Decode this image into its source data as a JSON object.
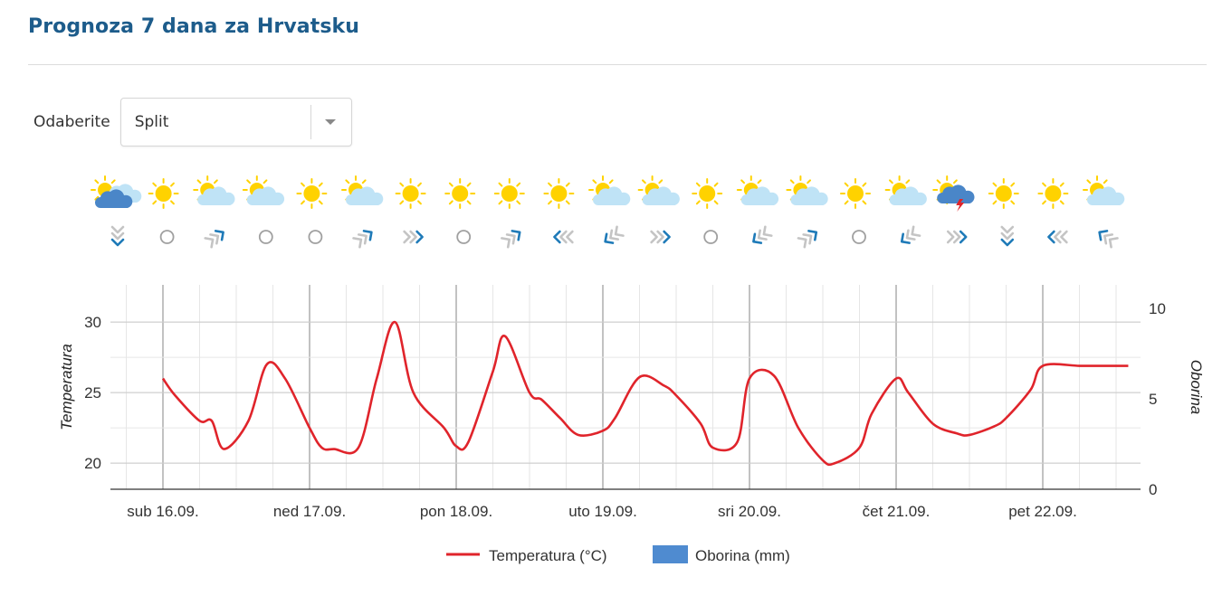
{
  "page": {
    "title": "Prognoza 7 dana za Hrvatsku"
  },
  "selector": {
    "label": "Odaberite",
    "value": "Split"
  },
  "colors": {
    "title": "#1d5c8b",
    "temperature_line": "#e0242b",
    "precipitation": "#4f8bd0",
    "sun": "#ffd200",
    "cloud": "#bfe3f6",
    "dark_cloud": "#4a86c8",
    "wind_blue": "#1e7ab8",
    "wind_gray": "#c4c4c4"
  },
  "weather_icons": [
    "sun-cloud-rain-icon",
    "sun-icon",
    "sun-cloud-icon",
    "sun-cloud-icon",
    "sun-icon",
    "sun-cloud-icon",
    "sun-icon",
    "sun-icon",
    "sun-icon",
    "sun-icon",
    "sun-cloud-icon",
    "sun-cloud-icon",
    "sun-icon",
    "sun-cloud-icon",
    "sun-cloud-icon",
    "sun-icon",
    "sun-cloud-icon",
    "sun-thunderstorm-icon",
    "sun-icon",
    "sun-icon",
    "sun-cloud-icon"
  ],
  "wind_icons": [
    "wind-down-icon",
    "calm-icon",
    "wind-up-right-icon",
    "calm-icon",
    "calm-icon",
    "wind-up-right-icon",
    "wind-right-icon",
    "calm-icon",
    "wind-up-right-icon",
    "wind-left-icon",
    "wind-down-left-icon",
    "wind-right-icon",
    "calm-icon",
    "wind-down-left-icon",
    "wind-up-right-icon",
    "calm-icon",
    "wind-down-left-icon",
    "wind-right-icon",
    "wind-down-icon",
    "wind-left-icon",
    "wind-up-left-icon"
  ],
  "chart_data": {
    "type": "line",
    "x_labels": [
      "sub 16.09.",
      "ned 17.09.",
      "pon 18.09.",
      "uto 19.09.",
      "sri 20.09.",
      "čet 21.09.",
      "pet 22.09."
    ],
    "y_left": {
      "label": "Temperatura",
      "ticks": [
        20,
        25,
        30
      ],
      "range": [
        18.15,
        32.64
      ]
    },
    "y_right": {
      "label": "Oborina",
      "ticks": [
        0,
        5,
        10
      ],
      "range": [
        0,
        11.3
      ]
    },
    "grid": true,
    "legend_position": "bottom",
    "series": [
      {
        "name": "Temperatura (°C)",
        "axis": "left",
        "x": [
          0,
          0.083,
          0.25,
          0.333,
          0.417,
          0.583,
          0.708,
          0.833,
          1.0,
          1.083,
          1.167,
          1.333,
          1.458,
          1.583,
          1.708,
          1.917,
          2.0,
          2.083,
          2.25,
          2.333,
          2.5,
          2.583,
          2.708,
          2.833,
          3.0,
          3.083,
          3.25,
          3.417,
          3.5,
          3.667,
          3.75,
          3.917,
          4.0,
          4.167,
          4.333,
          4.5,
          4.583,
          4.75,
          4.833,
          5.0,
          5.083,
          5.25,
          5.417,
          5.5,
          5.667,
          5.75,
          5.917,
          6.0,
          6.25,
          6.417,
          6.583
        ],
        "y": [
          26,
          24.8,
          23,
          23,
          21,
          23,
          27,
          26,
          22.5,
          21.1,
          21,
          21.1,
          26,
          30,
          25,
          22.5,
          21.2,
          21.5,
          26.5,
          29,
          25,
          24.5,
          23.2,
          22,
          22.3,
          23.2,
          26.1,
          25.5,
          24.8,
          22.8,
          21.1,
          21.5,
          26,
          26.2,
          22.5,
          20.2,
          20,
          21.1,
          23.5,
          26,
          25,
          22.8,
          22.1,
          22,
          22.6,
          23.2,
          25.2,
          26.9,
          26.9,
          26.9,
          26.9
        ]
      },
      {
        "name": "Oborina (mm)",
        "axis": "right",
        "values": []
      }
    ]
  }
}
